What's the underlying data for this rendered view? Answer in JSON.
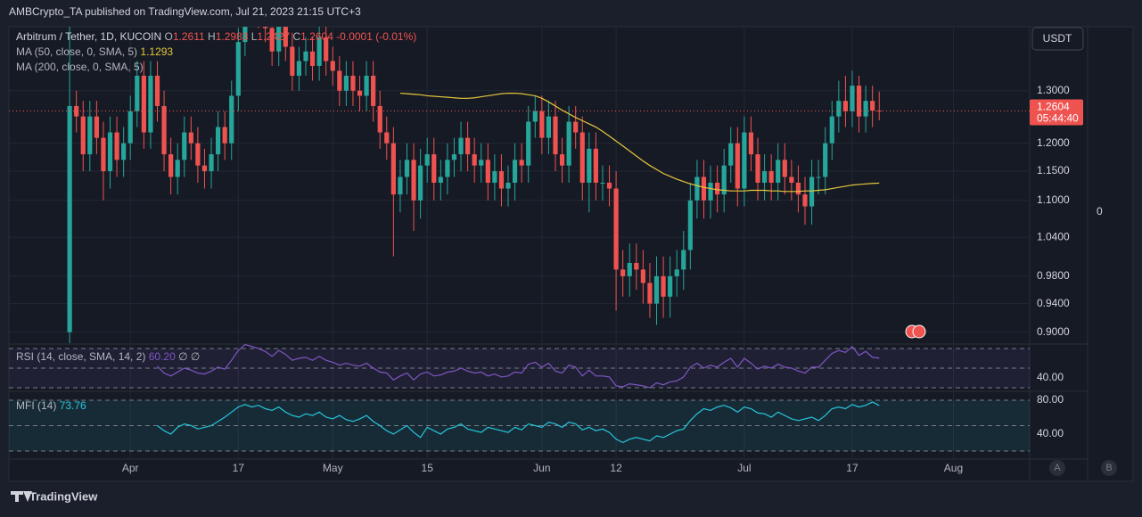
{
  "chart_data": {
    "type": "candlestick",
    "publisher": "AMBCrypto_TA published on TradingView.com, Jul 21, 2023 21:15 UTC+3",
    "symbol": "Arbitrum / Tether, 1D, KUCOIN",
    "ohlc_letters": [
      "O",
      "H",
      "L",
      "C"
    ],
    "change": -0.0001,
    "change_pct": "(-0.01%)",
    "currency": "USDT",
    "countdown": "05:44:40",
    "side_label": "0",
    "footer": "TradingView",
    "buttons": [
      "A",
      "B"
    ],
    "log_scale": true,
    "grid": true,
    "up_color": "#26a69a",
    "down_color": "#ef5350",
    "xlim": [
      -9,
      142.3
    ],
    "xticks": [
      {
        "value": 9,
        "label": "Apr"
      },
      {
        "value": 25,
        "label": "17"
      },
      {
        "value": 39,
        "label": "May"
      },
      {
        "value": 53,
        "label": "15"
      },
      {
        "value": 70,
        "label": "Jun"
      },
      {
        "value": 81,
        "label": "12"
      },
      {
        "value": 100,
        "label": "Jul"
      },
      {
        "value": 116,
        "label": "17"
      },
      {
        "value": 131,
        "label": "Aug"
      }
    ],
    "ylim": [
      0.885,
      1.433
    ],
    "yticks": [
      {
        "value": 1.3,
        "label": "1.3000"
      },
      {
        "value": 1.2,
        "label": "1.2000"
      },
      {
        "value": 1.15,
        "label": "1.1500"
      },
      {
        "value": 1.1,
        "label": "1.1000"
      },
      {
        "value": 1.04,
        "label": "1.0400"
      },
      {
        "value": 0.98,
        "label": "0.9800"
      },
      {
        "value": 0.94,
        "label": "0.9400"
      },
      {
        "value": 0.9,
        "label": "0.9000"
      }
    ],
    "x": [
      0,
      1,
      2,
      3,
      4,
      5,
      6,
      7,
      8,
      9,
      10,
      11,
      12,
      13,
      14,
      15,
      16,
      17,
      18,
      19,
      20,
      21,
      22,
      23,
      24,
      25,
      26,
      27,
      28,
      29,
      30,
      31,
      32,
      33,
      34,
      35,
      36,
      37,
      38,
      39,
      40,
      41,
      42,
      43,
      44,
      45,
      46,
      47,
      48,
      49,
      50,
      51,
      52,
      53,
      54,
      55,
      56,
      57,
      58,
      59,
      60,
      61,
      62,
      63,
      64,
      65,
      66,
      67,
      68,
      69,
      70,
      71,
      72,
      73,
      74,
      75,
      76,
      77,
      78,
      79,
      80,
      81,
      82,
      83,
      84,
      85,
      86,
      87,
      88,
      89,
      90,
      91,
      92,
      93,
      94,
      95,
      96,
      97,
      98,
      99,
      100,
      101,
      102,
      103,
      104,
      105,
      106,
      107,
      108,
      109,
      110,
      111,
      112,
      113,
      114,
      115,
      116,
      117,
      118,
      119,
      120
    ],
    "open": [
      0.9,
      1.27,
      1.25,
      1.18,
      1.25,
      1.21,
      1.15,
      1.22,
      1.17,
      1.2,
      1.26,
      1.33,
      1.22,
      1.33,
      1.27,
      1.18,
      1.14,
      1.17,
      1.22,
      1.2,
      1.16,
      1.15,
      1.18,
      1.23,
      1.2,
      1.29,
      1.4,
      1.5,
      1.48,
      1.46,
      1.43,
      1.38,
      1.47,
      1.39,
      1.33,
      1.36,
      1.38,
      1.35,
      1.41,
      1.36,
      1.34,
      1.3,
      1.33,
      1.3,
      1.29,
      1.33,
      1.27,
      1.22,
      1.2,
      1.11,
      1.14,
      1.17,
      1.1,
      1.16,
      1.18,
      1.13,
      1.14,
      1.17,
      1.18,
      1.21,
      1.18,
      1.16,
      1.17,
      1.13,
      1.15,
      1.12,
      1.13,
      1.17,
      1.16,
      1.24,
      1.26,
      1.21,
      1.25,
      1.18,
      1.16,
      1.24,
      1.22,
      1.13,
      1.19,
      1.13,
      1.13,
      1.12,
      0.99,
      0.98,
      1.0,
      0.99,
      0.97,
      0.94,
      0.98,
      0.95,
      0.98,
      0.99,
      1.02,
      1.1,
      1.14,
      1.1,
      1.13,
      1.11,
      1.16,
      1.2,
      1.12,
      1.22,
      1.18,
      1.13,
      1.15,
      1.13,
      1.17,
      1.14,
      1.13,
      1.11,
      1.09,
      1.14,
      1.14,
      1.2,
      1.25,
      1.28,
      1.26,
      1.31,
      1.25,
      1.28,
      1.2611
    ],
    "high": [
      1.45,
      1.3,
      1.28,
      1.28,
      1.28,
      1.24,
      1.25,
      1.25,
      1.23,
      1.29,
      1.36,
      1.36,
      1.36,
      1.36,
      1.3,
      1.21,
      1.2,
      1.25,
      1.25,
      1.23,
      1.19,
      1.21,
      1.26,
      1.26,
      1.32,
      1.43,
      1.53,
      1.53,
      1.51,
      1.49,
      1.46,
      1.5,
      1.5,
      1.42,
      1.39,
      1.41,
      1.41,
      1.44,
      1.44,
      1.39,
      1.37,
      1.36,
      1.36,
      1.33,
      1.36,
      1.36,
      1.3,
      1.25,
      1.23,
      1.17,
      1.2,
      1.2,
      1.19,
      1.21,
      1.21,
      1.17,
      1.2,
      1.21,
      1.24,
      1.24,
      1.21,
      1.2,
      1.2,
      1.18,
      1.18,
      1.16,
      1.2,
      1.2,
      1.27,
      1.29,
      1.29,
      1.28,
      1.28,
      1.21,
      1.27,
      1.27,
      1.25,
      1.22,
      1.22,
      1.16,
      1.16,
      1.15,
      1.02,
      1.03,
      1.03,
      1.02,
      1.0,
      1.01,
      1.01,
      1.01,
      1.02,
      1.05,
      1.13,
      1.17,
      1.17,
      1.16,
      1.16,
      1.19,
      1.23,
      1.23,
      1.25,
      1.25,
      1.21,
      1.18,
      1.18,
      1.2,
      1.2,
      1.17,
      1.16,
      1.14,
      1.17,
      1.17,
      1.23,
      1.28,
      1.32,
      1.33,
      1.34,
      1.33,
      1.31,
      1.31,
      1.2983
    ],
    "low": [
      0.85,
      1.22,
      1.15,
      1.15,
      1.18,
      1.1,
      1.12,
      1.14,
      1.14,
      1.17,
      1.23,
      1.19,
      1.19,
      1.24,
      1.15,
      1.11,
      1.11,
      1.14,
      1.17,
      1.13,
      1.12,
      1.12,
      1.15,
      1.17,
      1.17,
      1.26,
      1.37,
      1.45,
      1.43,
      1.4,
      1.35,
      1.35,
      1.36,
      1.3,
      1.3,
      1.33,
      1.32,
      1.32,
      1.33,
      1.31,
      1.27,
      1.27,
      1.27,
      1.26,
      1.26,
      1.24,
      1.19,
      1.17,
      1.01,
      1.08,
      1.11,
      1.05,
      1.07,
      1.13,
      1.1,
      1.1,
      1.11,
      1.14,
      1.15,
      1.15,
      1.13,
      1.13,
      1.1,
      1.1,
      1.09,
      1.09,
      1.1,
      1.13,
      1.13,
      1.21,
      1.18,
      1.18,
      1.15,
      1.13,
      1.13,
      1.19,
      1.1,
      1.08,
      1.1,
      1.1,
      1.09,
      0.93,
      0.95,
      0.95,
      0.96,
      0.94,
      0.92,
      0.91,
      0.92,
      0.92,
      0.95,
      0.96,
      0.99,
      1.07,
      1.07,
      1.07,
      1.08,
      1.08,
      1.13,
      1.09,
      1.09,
      1.15,
      1.1,
      1.1,
      1.1,
      1.1,
      1.11,
      1.1,
      1.08,
      1.06,
      1.06,
      1.11,
      1.11,
      1.17,
      1.22,
      1.23,
      1.23,
      1.22,
      1.22,
      1.23,
      1.2427
    ],
    "close": [
      1.27,
      1.25,
      1.18,
      1.25,
      1.21,
      1.15,
      1.22,
      1.17,
      1.2,
      1.26,
      1.33,
      1.22,
      1.33,
      1.27,
      1.18,
      1.14,
      1.17,
      1.22,
      1.2,
      1.16,
      1.15,
      1.18,
      1.23,
      1.2,
      1.29,
      1.4,
      1.5,
      1.48,
      1.46,
      1.43,
      1.38,
      1.47,
      1.39,
      1.33,
      1.36,
      1.38,
      1.35,
      1.41,
      1.36,
      1.34,
      1.3,
      1.33,
      1.3,
      1.29,
      1.33,
      1.27,
      1.22,
      1.2,
      1.11,
      1.14,
      1.17,
      1.1,
      1.16,
      1.18,
      1.13,
      1.14,
      1.17,
      1.18,
      1.21,
      1.18,
      1.16,
      1.17,
      1.13,
      1.15,
      1.12,
      1.13,
      1.17,
      1.16,
      1.24,
      1.26,
      1.21,
      1.25,
      1.18,
      1.16,
      1.24,
      1.22,
      1.13,
      1.19,
      1.13,
      1.13,
      1.12,
      0.99,
      0.98,
      1.0,
      0.99,
      0.97,
      0.94,
      0.98,
      0.95,
      0.98,
      0.99,
      1.02,
      1.1,
      1.14,
      1.1,
      1.13,
      1.11,
      1.16,
      1.2,
      1.12,
      1.22,
      1.18,
      1.13,
      1.15,
      1.13,
      1.17,
      1.14,
      1.13,
      1.11,
      1.09,
      1.14,
      1.14,
      1.2,
      1.25,
      1.28,
      1.26,
      1.31,
      1.25,
      1.28,
      1.2611,
      1.2604
    ],
    "ma": [
      {
        "name": "MA (50, close, 0, SMA, 5)",
        "color": "#e6c83a",
        "values": [
          null,
          null,
          null,
          null,
          null,
          null,
          null,
          null,
          null,
          null,
          null,
          null,
          null,
          null,
          null,
          null,
          null,
          null,
          null,
          null,
          null,
          null,
          null,
          null,
          null,
          null,
          null,
          null,
          null,
          null,
          null,
          null,
          null,
          null,
          null,
          null,
          null,
          null,
          null,
          null,
          null,
          null,
          null,
          null,
          null,
          null,
          null,
          null,
          null,
          1.295,
          1.294,
          1.293,
          1.292,
          1.29,
          1.289,
          1.288,
          1.287,
          1.286,
          1.285,
          1.285,
          1.286,
          1.288,
          1.29,
          1.292,
          1.294,
          1.295,
          1.295,
          1.294,
          1.292,
          1.29,
          1.285,
          1.278,
          1.27,
          1.262,
          1.255,
          1.248,
          1.242,
          1.236,
          1.23,
          1.222,
          1.213,
          1.204,
          1.195,
          1.186,
          1.177,
          1.168,
          1.16,
          1.153,
          1.146,
          1.141,
          1.136,
          1.132,
          1.128,
          1.125,
          1.122,
          1.12,
          1.118,
          1.117,
          1.116,
          1.116,
          1.116,
          1.117,
          1.117,
          1.117,
          1.116,
          1.116,
          1.115,
          1.115,
          1.115,
          1.116,
          1.116,
          1.117,
          1.118,
          1.12,
          1.122,
          1.124,
          1.126,
          1.127,
          1.128,
          1.1288,
          1.1293
        ]
      },
      {
        "name": "MA (200, close, 0, SMA, 5)",
        "color": "#b2b5be"
      }
    ],
    "rsi": {
      "name": "RSI (14, close, SMA, 14, 2)",
      "color": "#7e57c2",
      "last_label": "60.20",
      "extra": "∅ ∅",
      "ylim": [
        27.3,
        74.5
      ],
      "yticks": [
        {
          "value": 40,
          "label": "40.00"
        }
      ],
      "levels": [
        70,
        50,
        30
      ],
      "values": [
        null,
        null,
        null,
        null,
        null,
        null,
        null,
        null,
        null,
        null,
        null,
        null,
        null,
        52,
        45,
        42,
        46,
        50,
        48,
        45,
        44,
        47,
        51,
        49,
        58,
        68,
        74,
        72,
        70,
        67,
        62,
        68,
        64,
        58,
        60,
        61,
        58,
        62,
        58,
        56,
        53,
        55,
        53,
        52,
        55,
        50,
        46,
        45,
        38,
        42,
        45,
        38,
        44,
        46,
        42,
        43,
        46,
        47,
        50,
        47,
        45,
        46,
        42,
        44,
        41,
        42,
        46,
        45,
        54,
        56,
        51,
        55,
        47,
        45,
        53,
        51,
        42,
        48,
        42,
        42,
        41,
        32,
        31,
        34,
        33,
        32,
        30,
        35,
        33,
        36,
        37,
        41,
        51,
        55,
        50,
        53,
        51,
        56,
        60,
        51,
        60,
        55,
        49,
        52,
        50,
        54,
        51,
        50,
        47,
        45,
        51,
        51,
        58,
        65,
        68,
        66,
        72,
        63,
        67,
        61,
        60.2
      ]
    },
    "mfi": {
      "name": "MFI (14)",
      "color": "#26c6da",
      "ylim": [
        10.5,
        89.5
      ],
      "yticks": [
        {
          "value": 80,
          "label": "80.00"
        },
        {
          "value": 40,
          "label": "40.00"
        }
      ],
      "levels": [
        80,
        50,
        20
      ],
      "values": [
        null,
        null,
        null,
        null,
        null,
        null,
        null,
        null,
        null,
        null,
        null,
        null,
        null,
        50,
        44,
        40,
        48,
        52,
        50,
        46,
        48,
        50,
        55,
        60,
        66,
        72,
        75,
        72,
        74,
        70,
        68,
        72,
        66,
        62,
        60,
        64,
        62,
        66,
        60,
        58,
        62,
        57,
        55,
        58,
        62,
        55,
        50,
        44,
        40,
        45,
        50,
        42,
        36,
        48,
        44,
        40,
        46,
        48,
        52,
        46,
        44,
        42,
        48,
        46,
        44,
        42,
        48,
        45,
        52,
        50,
        48,
        54,
        52,
        48,
        54,
        52,
        45,
        48,
        44,
        46,
        42,
        34,
        30,
        34,
        36,
        34,
        32,
        38,
        36,
        40,
        44,
        46,
        56,
        64,
        70,
        68,
        72,
        74,
        71,
        66,
        72,
        70,
        65,
        64,
        60,
        66,
        62,
        58,
        56,
        58,
        60,
        56,
        62,
        70,
        72,
        70,
        75,
        72,
        74,
        78,
        73.76
      ]
    }
  }
}
